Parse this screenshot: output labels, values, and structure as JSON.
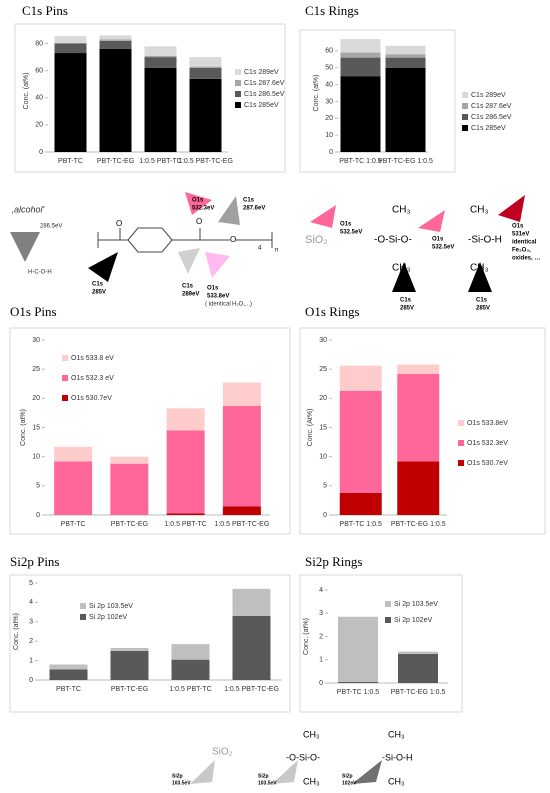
{
  "chart_data": [
    {
      "type": "bar",
      "stacked": true,
      "title": "C1s Pins",
      "ylabel": "Conc. (at%)",
      "categories": [
        "PBT-TC",
        "PBT-TC-EG",
        "1:0.5 PBT-TC",
        "1:0.5 PBT-TC-EG"
      ],
      "series": [
        {
          "name": "C1s 285eV",
          "color": "#000000",
          "values": [
            73,
            76,
            62,
            54
          ]
        },
        {
          "name": "C1s 286.5eV",
          "color": "#595959",
          "values": [
            7,
            6,
            8,
            8
          ]
        },
        {
          "name": "C1s 287.6eV",
          "color": "#a6a6a6",
          "values": [
            0.5,
            1,
            1,
            1
          ]
        },
        {
          "name": "C1s 289eV",
          "color": "#d9d9d9",
          "values": [
            5,
            3,
            7,
            7
          ]
        }
      ],
      "ylim": [
        0,
        90
      ],
      "yticks": [
        0,
        20,
        40,
        60,
        80
      ]
    },
    {
      "type": "bar",
      "stacked": true,
      "title": "C1s Rings",
      "ylabel": "Conc. (at%)",
      "categories": [
        "PBT-TC 1:0.5",
        "PBT-TC-EG 1:0.5"
      ],
      "series": [
        {
          "name": "C1s 285eV",
          "color": "#000000",
          "values": [
            45,
            50
          ]
        },
        {
          "name": "C1s 286.5eV",
          "color": "#595959",
          "values": [
            11,
            6
          ]
        },
        {
          "name": "C1s 287.6eV",
          "color": "#a6a6a6",
          "values": [
            3,
            2
          ]
        },
        {
          "name": "C1s 289eV",
          "color": "#d9d9d9",
          "values": [
            8,
            5
          ]
        }
      ],
      "ylim": [
        0,
        70
      ],
      "yticks": [
        0,
        10,
        20,
        30,
        40,
        50,
        60
      ]
    },
    {
      "type": "bar",
      "stacked": true,
      "title": "O1s Pins",
      "ylabel": "Conc. (at%)",
      "categories": [
        "PBT-TC",
        "PBT-TC-EG",
        "1:0.5 PBT-TC",
        "1:0.5 PBT-TC-EG"
      ],
      "series": [
        {
          "name": "O1s 530.7eV",
          "color": "#c00000",
          "values": [
            0,
            0,
            0.3,
            1.5
          ]
        },
        {
          "name": "O1s 532.3 eV",
          "color": "#ff6699",
          "values": [
            9.2,
            8.8,
            14.2,
            17.2
          ]
        },
        {
          "name": "O1s 533.8 eV",
          "color": "#ffcccc",
          "values": [
            2.5,
            1.2,
            3.8,
            4
          ]
        }
      ],
      "ylim": [
        0,
        30
      ],
      "yticks": [
        0,
        5,
        10,
        15,
        20,
        25,
        30
      ]
    },
    {
      "type": "bar",
      "stacked": true,
      "title": "O1s Rings",
      "ylabel": "Conc. (At%)",
      "categories": [
        "PBT-TC 1:0.5",
        "PBT-TC-EG 1:0.5"
      ],
      "series": [
        {
          "name": "O1s 530.7eV",
          "color": "#c00000",
          "values": [
            3.8,
            9.2
          ]
        },
        {
          "name": "O1s 532.3eV",
          "color": "#ff6699",
          "values": [
            17.5,
            15
          ]
        },
        {
          "name": "O1s 533.8eV",
          "color": "#ffcccc",
          "values": [
            4.3,
            1.6
          ]
        }
      ],
      "ylim": [
        0,
        30
      ],
      "yticks": [
        0,
        5,
        10,
        15,
        20,
        25,
        30
      ]
    },
    {
      "type": "bar",
      "stacked": true,
      "title": "Si2p Pins",
      "ylabel": "Conc. (at%)",
      "categories": [
        "PBT-TC",
        "PBT-TC-EG",
        "1:0.5 PBT-TC",
        "1:0.5 PBT-TC-EG"
      ],
      "series": [
        {
          "name": "Si 2p 102eV",
          "color": "#595959",
          "values": [
            0.55,
            1.5,
            1.05,
            3.3
          ]
        },
        {
          "name": "Si 2p 103.5eV",
          "color": "#bfbfbf",
          "values": [
            0.25,
            0.15,
            0.8,
            1.4
          ]
        }
      ],
      "ylim": [
        0,
        5
      ],
      "yticks": [
        0,
        1,
        2,
        3,
        4,
        5
      ]
    },
    {
      "type": "bar",
      "stacked": true,
      "title": "Si2p Rings",
      "ylabel": "Conc. (at%)",
      "categories": [
        "PBT-TC 1:0.5",
        "PBT-TC-EG 1:0.5"
      ],
      "series": [
        {
          "name": "Si 2p 102eV",
          "color": "#595959",
          "values": [
            0.05,
            1.25
          ]
        },
        {
          "name": "Si 2p 103.5eV",
          "color": "#bfbfbf",
          "values": [
            2.8,
            0.1
          ]
        }
      ],
      "ylim": [
        0,
        4
      ],
      "yticks": [
        0,
        1,
        2,
        3,
        4
      ]
    }
  ],
  "annotations": [
    "‚alcohol'",
    "286.5eV",
    "H-C-O-H",
    "C1s",
    "285V",
    "O1s",
    "532.3eV",
    "C1s",
    "289eV",
    "C1s",
    "287.6eV",
    "O1s",
    "533.8eV",
    "( identical",
    "H₂O,...)",
    "SiO₂",
    "O1s",
    "532.5eV",
    "CH₃",
    "-O-Si-O-",
    "CH₃",
    "O1s",
    "532.5eV",
    "C1s",
    "285V",
    "CH₃",
    "-Si-O-H",
    "CH₃",
    "O1s",
    "531eV",
    "identical",
    "Fe₂O₃,",
    "oxides, …",
    "C1s",
    "285V",
    "SiO₂",
    "Si2p",
    "103.5eV",
    "CH₃",
    "-O-Si-O-",
    "CH₃",
    "Si2p",
    "103.5eV",
    "CH₃",
    "-Si-O-H",
    "CH₃",
    "Si2p",
    "102eV",
    "O",
    "O",
    "O",
    "n",
    "4"
  ]
}
